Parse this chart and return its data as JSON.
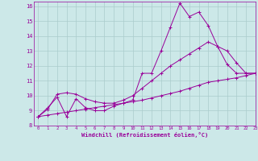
{
  "background_color": "#cce8e8",
  "grid_color": "#aacccc",
  "line_color": "#990099",
  "xlim": [
    -0.5,
    23
  ],
  "ylim": [
    8,
    16.3
  ],
  "xlabel": "Windchill (Refroidissement éolien,°C)",
  "xticks": [
    0,
    1,
    2,
    3,
    4,
    5,
    6,
    7,
    8,
    9,
    10,
    11,
    12,
    13,
    14,
    15,
    16,
    17,
    18,
    19,
    20,
    21,
    22,
    23
  ],
  "yticks": [
    8,
    9,
    10,
    11,
    12,
    13,
    14,
    15,
    16
  ],
  "line1_x": [
    0,
    1,
    2,
    3,
    4,
    5,
    6,
    7,
    8,
    9,
    10,
    11,
    12,
    13,
    14,
    15,
    16,
    17,
    18,
    19,
    20,
    21,
    22,
    23
  ],
  "line1_y": [
    8.6,
    9.2,
    9.9,
    8.6,
    9.8,
    9.2,
    9.0,
    9.0,
    9.3,
    9.5,
    9.7,
    11.5,
    11.5,
    13.0,
    14.6,
    16.2,
    15.3,
    15.6,
    14.7,
    13.3,
    12.1,
    11.5,
    11.5,
    11.5
  ],
  "line2_x": [
    0,
    1,
    2,
    3,
    4,
    5,
    6,
    7,
    8,
    9,
    10,
    11,
    12,
    13,
    14,
    15,
    16,
    17,
    18,
    19,
    20,
    21,
    22,
    23
  ],
  "line2_y": [
    8.6,
    9.1,
    10.1,
    10.2,
    10.1,
    9.8,
    9.6,
    9.5,
    9.5,
    9.7,
    10.0,
    10.5,
    11.0,
    11.5,
    12.0,
    12.4,
    12.8,
    13.2,
    13.6,
    13.3,
    13.0,
    12.2,
    11.5,
    11.5
  ],
  "line3_x": [
    0,
    1,
    2,
    3,
    4,
    5,
    6,
    7,
    8,
    9,
    10,
    11,
    12,
    13,
    14,
    15,
    16,
    17,
    18,
    19,
    20,
    21,
    22,
    23
  ],
  "line3_y": [
    8.6,
    8.7,
    8.8,
    8.9,
    9.0,
    9.1,
    9.2,
    9.3,
    9.4,
    9.5,
    9.6,
    9.7,
    9.85,
    10.0,
    10.15,
    10.3,
    10.5,
    10.7,
    10.9,
    11.0,
    11.1,
    11.2,
    11.35,
    11.5
  ]
}
